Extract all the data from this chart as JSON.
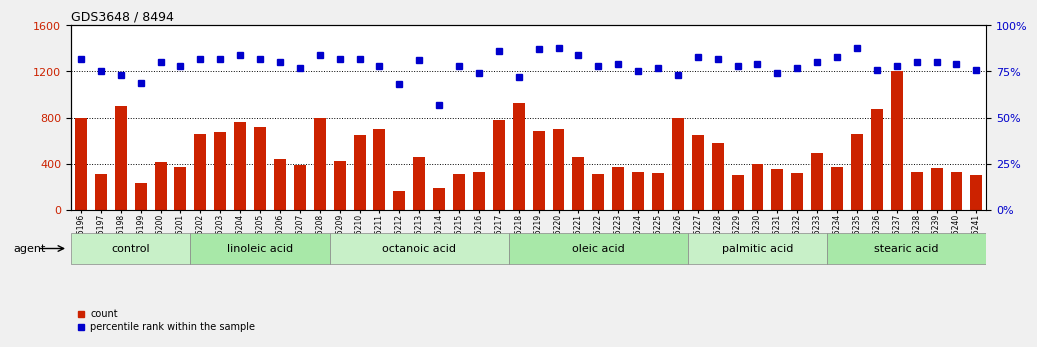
{
  "title": "GDS3648 / 8494",
  "samples": [
    "GSM525196",
    "GSM525197",
    "GSM525198",
    "GSM525199",
    "GSM525200",
    "GSM525201",
    "GSM525202",
    "GSM525203",
    "GSM525204",
    "GSM525205",
    "GSM525206",
    "GSM525207",
    "GSM525208",
    "GSM525209",
    "GSM525210",
    "GSM525211",
    "GSM525212",
    "GSM525213",
    "GSM525214",
    "GSM525215",
    "GSM525216",
    "GSM525217",
    "GSM525218",
    "GSM525219",
    "GSM525220",
    "GSM525221",
    "GSM525222",
    "GSM525223",
    "GSM525224",
    "GSM525225",
    "GSM525226",
    "GSM525227",
    "GSM525228",
    "GSM525229",
    "GSM525230",
    "GSM525231",
    "GSM525232",
    "GSM525233",
    "GSM525234",
    "GSM525235",
    "GSM525236",
    "GSM525237",
    "GSM525238",
    "GSM525239",
    "GSM525240",
    "GSM525241"
  ],
  "counts": [
    800,
    310,
    900,
    230,
    410,
    370,
    660,
    670,
    760,
    720,
    440,
    390,
    800,
    420,
    650,
    700,
    160,
    460,
    190,
    310,
    330,
    780,
    930,
    680,
    700,
    460,
    310,
    370,
    330,
    320,
    800,
    650,
    580,
    300,
    400,
    350,
    320,
    490,
    370,
    660,
    870,
    1200,
    330,
    360,
    330,
    300
  ],
  "percentile": [
    82,
    75,
    73,
    69,
    80,
    78,
    82,
    82,
    84,
    82,
    80,
    77,
    84,
    82,
    82,
    78,
    68,
    81,
    57,
    78,
    74,
    86,
    72,
    87,
    88,
    84,
    78,
    79,
    75,
    77,
    73,
    83,
    82,
    78,
    79,
    74,
    77,
    80,
    83,
    88,
    76,
    78,
    80,
    80,
    79,
    76
  ],
  "groups": [
    {
      "label": "control",
      "start": 0,
      "end": 6
    },
    {
      "label": "linoleic acid",
      "start": 6,
      "end": 13
    },
    {
      "label": "octanoic acid",
      "start": 13,
      "end": 22
    },
    {
      "label": "oleic acid",
      "start": 22,
      "end": 31
    },
    {
      "label": "palmitic acid",
      "start": 31,
      "end": 38
    },
    {
      "label": "stearic acid",
      "start": 38,
      "end": 46
    }
  ],
  "bar_color": "#cc2200",
  "dot_color": "#0000cc",
  "left_ylim": [
    0,
    1600
  ],
  "right_ylim": [
    0,
    100
  ],
  "left_yticks": [
    0,
    400,
    800,
    1200,
    1600
  ],
  "right_yticks": [
    0,
    25,
    50,
    75,
    100
  ],
  "bg_color": "#f0f0f0",
  "plot_bg_color": "#ffffff",
  "group_colors": [
    "#c8f0c8",
    "#a8e8a8"
  ],
  "agent_label": "agent",
  "legend_count_label": "count",
  "legend_pct_label": "percentile rank within the sample"
}
